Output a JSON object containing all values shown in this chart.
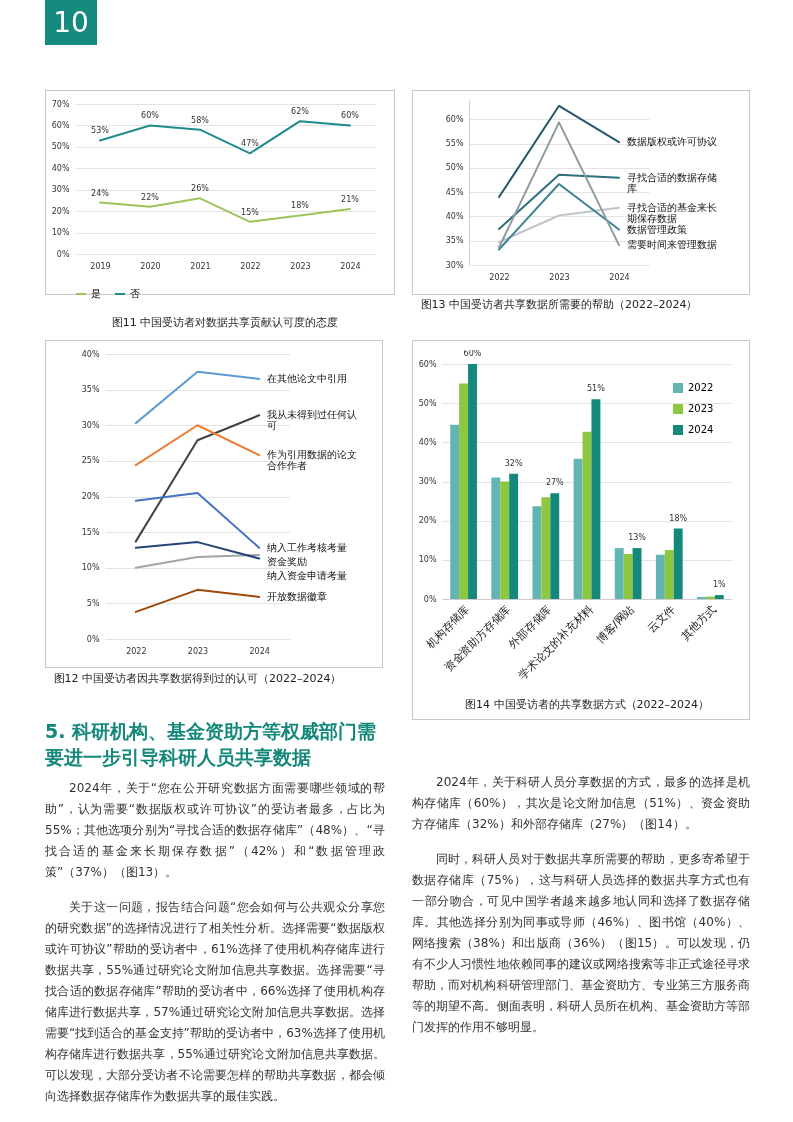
{
  "chart_data": [
    {
      "type": "other",
      "annotations": [
        "10"
      ]
    },
    {
      "type": "line",
      "title": "图11  中国受访者对数据共享贡献认可度的态度",
      "categories": [
        "2019",
        "2020",
        "2021",
        "2022",
        "2023",
        "2024"
      ],
      "ylim": [
        0,
        70
      ],
      "yticks": [
        {
          "value": 0,
          "label": "0%"
        },
        {
          "value": 10,
          "label": "10%"
        },
        {
          "value": 20,
          "label": "20%"
        },
        {
          "value": 30,
          "label": "30%"
        },
        {
          "value": 40,
          "label": "40%"
        },
        {
          "value": 50,
          "label": "50%"
        },
        {
          "value": 60,
          "label": "60%"
        },
        {
          "value": 70,
          "label": "70%"
        }
      ],
      "grid": "y",
      "legend": "bottom",
      "series": [
        {
          "name": "是",
          "color": "#9bc55b",
          "values": [
            24,
            22,
            26,
            15,
            18,
            21
          ],
          "value_labels": [
            "24%",
            "22%",
            "26%",
            "15%",
            "18%",
            "21%"
          ]
        },
        {
          "name": "否",
          "color": "#1e8c8c",
          "values": [
            53,
            60,
            58,
            47,
            62,
            60
          ],
          "value_labels": [
            "53%",
            "60%",
            "58%",
            "47%",
            "62%",
            "60%"
          ]
        }
      ]
    },
    {
      "type": "line",
      "title": "图13  中国受访者共享数据所需要的帮助（2022–2024）",
      "categories": [
        "2022",
        "2023",
        "2024"
      ],
      "ylim": [
        30,
        64
      ],
      "yticks": [
        {
          "value": 30,
          "label": "30%"
        },
        {
          "value": 35,
          "label": "35%"
        },
        {
          "value": 40,
          "label": "40%"
        },
        {
          "value": 45,
          "label": "45%"
        },
        {
          "value": 50,
          "label": "50%"
        },
        {
          "value": 55,
          "label": "55%"
        },
        {
          "value": 60,
          "label": "60%"
        }
      ],
      "grid": "y",
      "series": [
        {
          "name": "数据版权或许可协议",
          "color": "#24586a",
          "values": [
            44,
            62.8,
            55.3
          ]
        },
        {
          "name": "寻找合适的数据存储库",
          "color": "#2f6f7f",
          "values": [
            37.4,
            48.6,
            48
          ]
        },
        {
          "name": "寻找合适的基金来长期保存数据",
          "color": "#c0c4c6",
          "values": [
            34.7,
            40.2,
            41.8
          ]
        },
        {
          "name": "数据管理政策",
          "color": "#3d8290",
          "values": [
            33.2,
            46.7,
            37.3
          ]
        },
        {
          "name": "需要时间来管理数据",
          "color": "#8c9ca2",
          "values": [
            33.6,
            59.4,
            34.1
          ]
        }
      ]
    },
    {
      "type": "line",
      "title": "图12  中国受访者因共享数据得到过的认可（2022–2024）",
      "categories": [
        "2022",
        "2023",
        "2024"
      ],
      "ylim": [
        0,
        40
      ],
      "yticks": [
        {
          "value": 0,
          "label": "0%"
        },
        {
          "value": 5,
          "label": "5%"
        },
        {
          "value": 10,
          "label": "10%"
        },
        {
          "value": 15,
          "label": "15%"
        },
        {
          "value": 20,
          "label": "20%"
        },
        {
          "value": 25,
          "label": "25%"
        },
        {
          "value": 30,
          "label": "30%"
        },
        {
          "value": 35,
          "label": "35%"
        },
        {
          "value": 40,
          "label": "40%"
        }
      ],
      "grid": "y",
      "series": [
        {
          "name": "在其他论文中引用",
          "color": "#5b9bd5",
          "values": [
            30.3,
            37.5,
            36.5
          ]
        },
        {
          "name": "我从未得到过任何认可",
          "color": "#404040",
          "values": [
            13.7,
            27.9,
            31.4
          ]
        },
        {
          "name": "作为引用数据的论文合作作者",
          "color": "#ed7d31",
          "values": [
            24.4,
            30,
            25.8
          ]
        },
        {
          "name": "纳入工作考核考量",
          "color": "#4472c4",
          "values": [
            19.4,
            20.5,
            12.8
          ]
        },
        {
          "name": "资金奖励",
          "color": "#a5a5a5",
          "values": [
            10,
            11.5,
            11.8
          ]
        },
        {
          "name": "纳入资金申请考量",
          "color": "#264478",
          "values": [
            12.8,
            13.6,
            11.3
          ]
        },
        {
          "name": "开放数据徽章",
          "color": "#9e480e",
          "values": [
            3.8,
            6.9,
            5.9
          ]
        }
      ]
    },
    {
      "type": "bar",
      "title": "图14  中国受访者的共享数据方式（2022–2024）",
      "categories": [
        "机构存储库",
        "资金资助方存储库",
        "外部存储库",
        "学术论文的补充材料",
        "博客/网站",
        "云文件",
        "其他方式"
      ],
      "ylim": [
        0,
        60
      ],
      "yticks": [
        {
          "value": 0,
          "label": "0%"
        },
        {
          "value": 10,
          "label": "10%"
        },
        {
          "value": 20,
          "label": "20%"
        },
        {
          "value": 30,
          "label": "30%"
        },
        {
          "value": 40,
          "label": "40%"
        },
        {
          "value": 50,
          "label": "50%"
        },
        {
          "value": 60,
          "label": "60%"
        }
      ],
      "grid": "y",
      "legend": "top right",
      "series": [
        {
          "name": "2022",
          "color": "#62b5b3",
          "values": [
            44.5,
            31,
            23.7,
            35.8,
            13,
            11.3,
            0.5
          ]
        },
        {
          "name": "2023",
          "color": "#8dc63f",
          "values": [
            55,
            30,
            26,
            42.7,
            11.5,
            12.5,
            0.6
          ]
        },
        {
          "name": "2024",
          "color": "#14887a",
          "values": [
            60,
            32,
            27,
            51,
            13,
            18,
            1
          ],
          "value_labels": [
            "60%",
            "32%",
            "27%",
            "51%",
            "13%",
            "18%",
            "1%"
          ]
        }
      ]
    },
    {
      "type": "other",
      "title": "5. 科研机构、基金资助方等权威部门需要进一步引导科研人员共享数据",
      "annotations": [
        "2024年，关于“您在公开研究数据方面需要哪些领域的帮助”，认为需要“数据版权或许可协议”的受访者最多，占比为55%；其他选项分别为“寻找合适的数据存储库”（48%）、“寻找合适的基金来长期保存数据”（42%）和“数据管理政策”（37%）（图13）。",
        "关于这一问题，报告结合问题“您会如何与公共观众分享您的研究数据”的选择情况进行了相关性分析。选择需要“数据版权或许可协议”帮助的受访者中，61%选择了使用机构存储库进行数据共享，55%通过研究论文附加信息共享数据。选择需要“寻找合适的数据存储库”帮助的受访者中，66%选择了使用机构存储库进行数据共享，57%通过研究论文附加信息共享数据。选择需要“找到适合的基金支持”帮助的受访者中，63%选择了使用机构存储库进行数据共享，55%通过研究论文附加信息共享数据。可以发现，大部分受访者不论需要怎样的帮助共享数据，都会倾向选择数据存储库作为数据共享的最佳实践。"
      ]
    },
    {
      "type": "other",
      "annotations": [
        "2024年，关于科研人员分享数据的方式，最多的选择是机构存储库（60%），其次是论文附加信息（51%）、资金资助方存储库（32%）和外部存储库（27%）（图14）。",
        "同时，科研人员对于数据共享所需要的帮助，更多寄希望于数据存储库（75%），这与科研人员选择的数据共享方式也有一部分吻合，可见中国学者越来越多地认同和选择了数据存储库。其他选择分别为同事或导师（46%）、图书馆（40%）、网络搜索（38%）和出版商（36%）（图15）。可以发现，仍有不少人习惯性地依赖同事的建议或网络搜索等非正式途径寻求帮助，而对机构科研管理部门、基金资助方、专业第三方服务商等的期望不高。侧面表明，科研人员所在机构、基金资助方等部门发挥的作用不够明显。"
      ]
    }
  ]
}
